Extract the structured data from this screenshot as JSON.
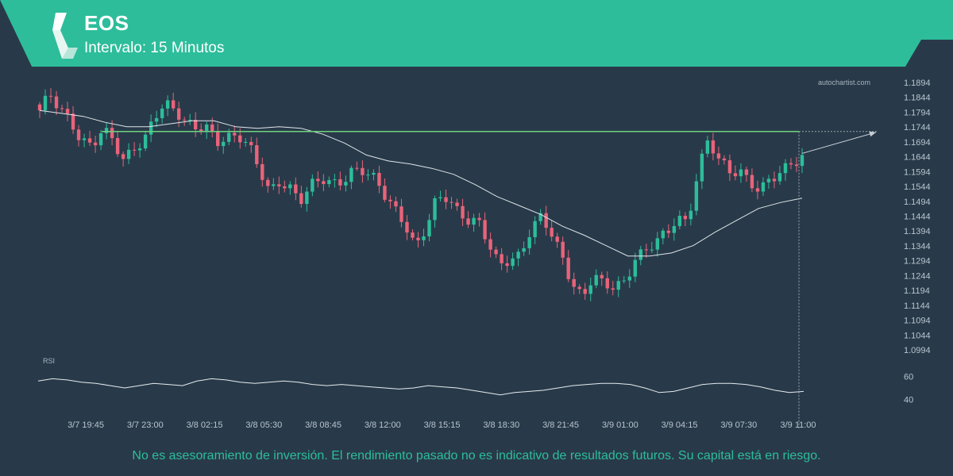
{
  "header": {
    "symbol": "EOS",
    "interval": "Intervalo: 15 Minutos",
    "brand_color": "#2dbd9b"
  },
  "watermark": "autochartist.com",
  "disclaimer": "No es asesoramiento de inversión. El rendimiento pasado no es indicativo de resultados futuros. Su capital está en riesgo.",
  "chart_data": {
    "type": "candlestick",
    "price_ticks": [
      "1.1894",
      "1.1844",
      "1.1794",
      "1.1744",
      "1.1694",
      "1.1644",
      "1.1594",
      "1.1544",
      "1.1494",
      "1.1444",
      "1.1394",
      "1.1344",
      "1.1294",
      "1.1244",
      "1.1194",
      "1.1144",
      "1.1094",
      "1.1044",
      "1.0994"
    ],
    "ylim": [
      1.0994,
      1.1894
    ],
    "x_ticks": [
      "3/7 19:45",
      "3/7 23:00",
      "3/8 02:15",
      "3/8 05:30",
      "3/8 08:45",
      "3/8 12:00",
      "3/8 15:15",
      "3/8 18:30",
      "3/8 21:45",
      "3/9 01:00",
      "3/9 04:15",
      "3/9 07:30",
      "3/9 11:00"
    ],
    "resistance_level": 1.1729,
    "close_path": [
      1.179,
      1.1845,
      1.1805,
      1.1775,
      1.17,
      1.1675,
      1.172,
      1.1705,
      1.164,
      1.1685,
      1.169,
      1.177,
      1.1815,
      1.181,
      1.177,
      1.1745,
      1.173,
      1.1685,
      1.171,
      1.173,
      1.169,
      1.16,
      1.151,
      1.156,
      1.1545,
      1.151,
      1.1545,
      1.156,
      1.1545,
      1.157,
      1.161,
      1.16,
      1.156,
      1.151,
      1.147,
      1.143,
      1.134,
      1.14,
      1.149,
      1.151,
      1.147,
      1.144,
      1.142,
      1.134,
      1.127,
      1.131,
      1.132,
      1.14,
      1.143,
      1.138,
      1.131,
      1.123,
      1.117,
      1.124,
      1.12,
      1.121,
      1.123,
      1.131,
      1.132,
      1.135,
      1.138,
      1.145,
      1.143,
      1.159,
      1.169,
      1.163,
      1.16,
      1.161,
      1.156,
      1.152,
      1.156,
      1.1595,
      1.1635,
      1.165
    ],
    "moving_average": [
      1.18,
      1.179,
      1.178,
      1.176,
      1.1745,
      1.1745,
      1.1755,
      1.1765,
      1.1765,
      1.1745,
      1.174,
      1.1745,
      1.174,
      1.172,
      1.169,
      1.165,
      1.163,
      1.162,
      1.1605,
      1.1585,
      1.155,
      1.151,
      1.148,
      1.145,
      1.141,
      1.138,
      1.1345,
      1.131,
      1.131,
      1.132,
      1.1345,
      1.139,
      1.143,
      1.147,
      1.149,
      1.1505
    ],
    "rsi": {
      "label": "RSI",
      "ticks": [
        "60",
        "40"
      ],
      "values": [
        56,
        58,
        57,
        55,
        54,
        52,
        50,
        52,
        54,
        53,
        52,
        56,
        58,
        57,
        55,
        54,
        55,
        56,
        55,
        53,
        52,
        53,
        52,
        51,
        50,
        49,
        50,
        52,
        51,
        50,
        48,
        46,
        44,
        46,
        47,
        48,
        50,
        52,
        53,
        54,
        54,
        53,
        50,
        46,
        47,
        50,
        53,
        54,
        54,
        53,
        51,
        48,
        46,
        47
      ]
    }
  }
}
